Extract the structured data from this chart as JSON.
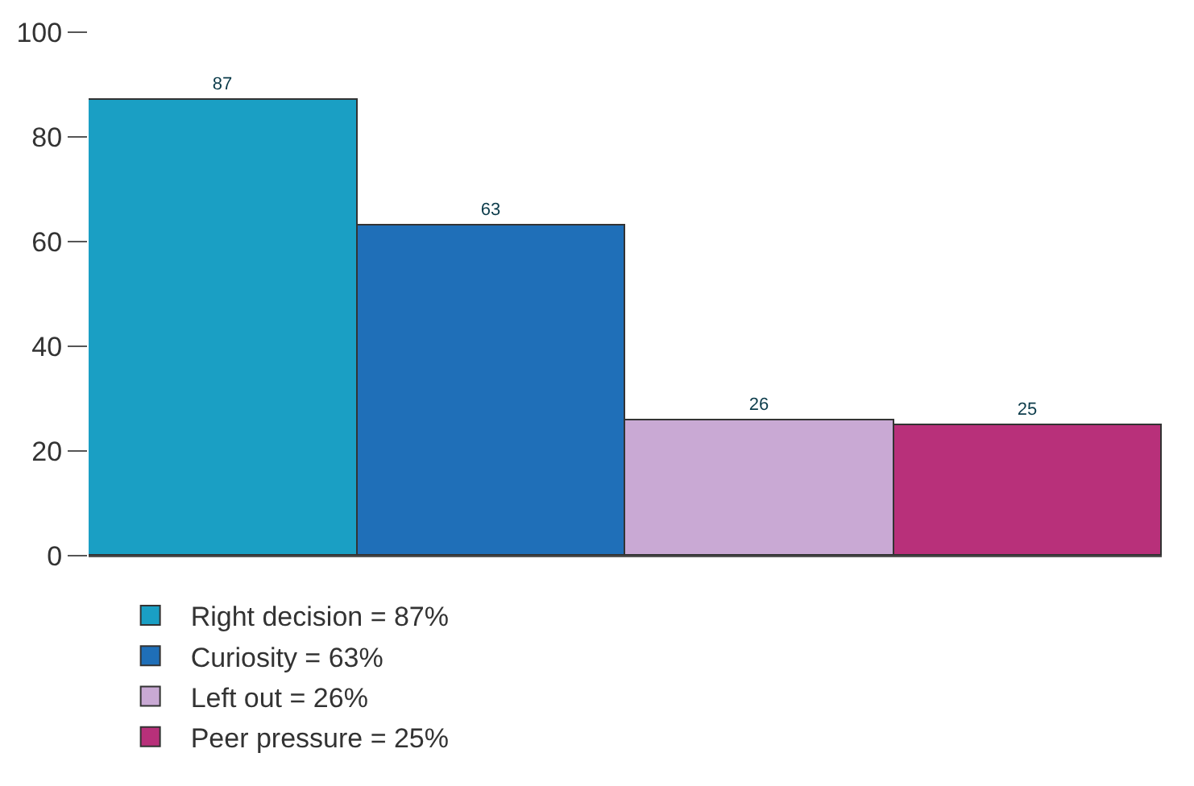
{
  "chart_data": {
    "type": "bar",
    "categories": [
      null,
      null,
      null,
      null
    ],
    "series": [
      {
        "name": "Right decision = 87%",
        "color": "#1a9fc4",
        "values": [
          87,
          null,
          null,
          null
        ]
      },
      {
        "name": "Curiosity = 63%",
        "color": "#1f6fb8",
        "values": [
          null,
          63,
          null,
          null
        ]
      },
      {
        "name": "Left out = 26%",
        "color": "#c9a9d4",
        "values": [
          null,
          null,
          26,
          null
        ]
      },
      {
        "name": "Peer pressure = 25%",
        "color": "#b8307a",
        "values": [
          null,
          null,
          null,
          25
        ]
      }
    ],
    "ylim": [
      0,
      100
    ],
    "yticks": [
      0,
      20,
      40,
      60,
      80,
      100
    ],
    "grid": false,
    "legend": "bottom",
    "data_labels": true
  }
}
